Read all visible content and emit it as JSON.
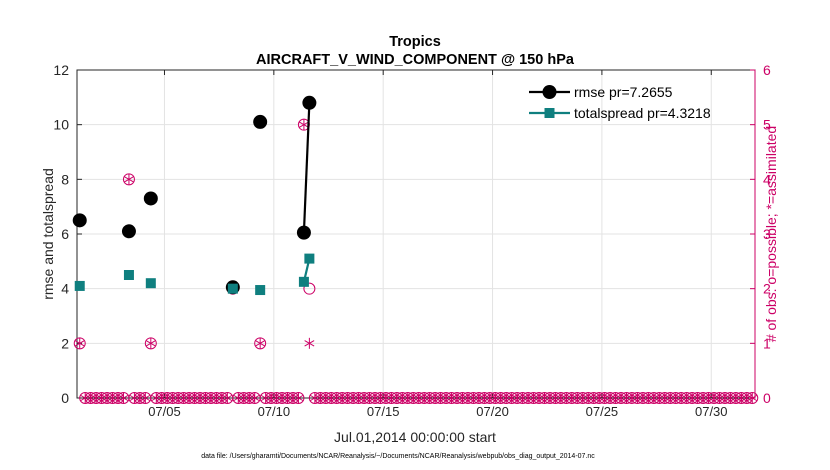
{
  "chart_data": {
    "type": "line",
    "title": "Tropics",
    "subtitle": "AIRCRAFT_V_WIND_COMPONENT @ 150 hPa",
    "xlabel": "Jul.01,2014 00:00:00 start",
    "ylabel_left": "rmse and totalspread",
    "ylabel_right": "# of obs: o=possible; *=assimilated",
    "footnote": "data file: /Users/gharamti/Documents/NCAR/Reanalysis/~/Documents/NCAR/Reanalysis/webpub/obs_diag_output_2014-07.nc",
    "xlim_days": [
      0,
      31
    ],
    "ylim_left": [
      0,
      12
    ],
    "ylim_right": [
      0,
      6
    ],
    "x_ticks": [
      {
        "day": 4,
        "label": "07/05"
      },
      {
        "day": 9,
        "label": "07/10"
      },
      {
        "day": 14,
        "label": "07/15"
      },
      {
        "day": 19,
        "label": "07/20"
      },
      {
        "day": 24,
        "label": "07/25"
      },
      {
        "day": 29,
        "label": "07/30"
      }
    ],
    "y_ticks_left": [
      "0",
      "2",
      "4",
      "6",
      "8",
      "10",
      "12"
    ],
    "y_ticks_right": [
      "0",
      "1",
      "2",
      "3",
      "4",
      "5",
      "6"
    ],
    "colors": {
      "rmse": "#000000",
      "totalspread": "#0f7f7f",
      "obs": "#cc0066",
      "grid": "#e3e3e3"
    },
    "legend": [
      {
        "label": "rmse pr=7.2655",
        "series": "rmse"
      },
      {
        "label": "totalspread pr=4.3218",
        "series": "totalspread"
      }
    ],
    "series": [
      {
        "name": "rmse",
        "points": [
          [
            0.125,
            6.5
          ],
          [
            2.375,
            6.1
          ],
          [
            3.375,
            7.3
          ],
          [
            7.125,
            4.05
          ],
          [
            8.375,
            10.1
          ],
          [
            10.375,
            6.05
          ],
          [
            10.625,
            10.8
          ]
        ]
      },
      {
        "name": "totalspread",
        "points": [
          [
            0.125,
            4.1
          ],
          [
            2.375,
            4.5
          ],
          [
            3.375,
            4.2
          ],
          [
            7.125,
            4.0
          ],
          [
            8.375,
            3.95
          ],
          [
            10.375,
            4.25
          ],
          [
            10.625,
            5.1
          ]
        ]
      }
    ],
    "obs_counts": {
      "bin_days": 0.25,
      "nonzero": [
        {
          "day": 0.125,
          "possible": 1,
          "assimilated": 1
        },
        {
          "day": 2.375,
          "possible": 4,
          "assimilated": 4
        },
        {
          "day": 3.375,
          "possible": 1,
          "assimilated": 1
        },
        {
          "day": 7.125,
          "possible": 2,
          "assimilated": 2
        },
        {
          "day": 8.375,
          "possible": 1,
          "assimilated": 1
        },
        {
          "day": 10.375,
          "possible": 5,
          "assimilated": 5
        },
        {
          "day": 10.625,
          "possible": 2,
          "assimilated": 1
        }
      ],
      "zero_marker_end_day": 31
    }
  }
}
